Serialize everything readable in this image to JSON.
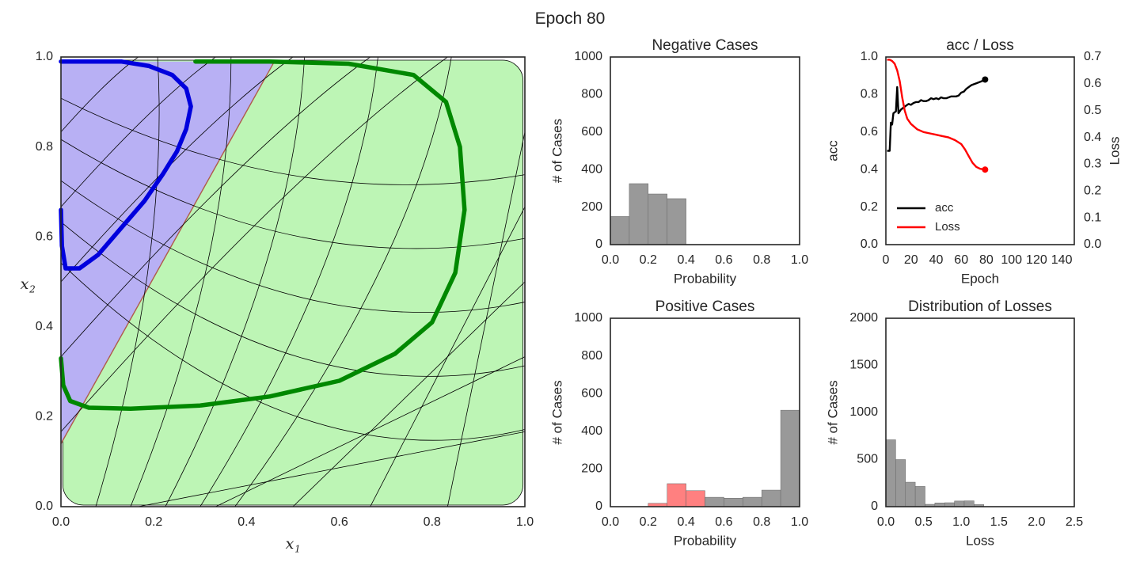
{
  "figure": {
    "suptitle": "Epoch 80"
  },
  "chart_data": [
    {
      "id": "space",
      "type": "scatter",
      "title": "",
      "xlabel": "x",
      "xlabel_sub": "1",
      "ylabel": "x",
      "ylabel_sub": "2",
      "xlim": [
        0,
        1
      ],
      "ylim": [
        0,
        1
      ],
      "xticks": [
        "0.0",
        "0.2",
        "0.4",
        "0.6",
        "0.8",
        "1.0"
      ],
      "yticks": [
        "0.0",
        "0.2",
        "0.4",
        "0.6",
        "0.8",
        "1.0"
      ],
      "regions": {
        "negative_color": "#b8b0f4",
        "positive_color": "#bdf5b5",
        "boundary": [
          [
            0.0,
            0.14
          ],
          [
            0.46,
            0.99
          ]
        ]
      },
      "series": [
        {
          "color": "#0000dd",
          "points": [
            [
              0.0,
              0.66
            ],
            [
              0.002,
              0.58
            ],
            [
              0.01,
              0.53
            ],
            [
              0.04,
              0.53
            ],
            [
              0.08,
              0.56
            ],
            [
              0.13,
              0.62
            ],
            [
              0.18,
              0.68
            ],
            [
              0.22,
              0.74
            ],
            [
              0.25,
              0.79
            ],
            [
              0.27,
              0.84
            ],
            [
              0.28,
              0.89
            ],
            [
              0.27,
              0.93
            ],
            [
              0.24,
              0.96
            ],
            [
              0.19,
              0.98
            ],
            [
              0.13,
              0.99
            ],
            [
              0.07,
              0.99
            ],
            [
              0.02,
              0.99
            ],
            [
              0.0,
              0.99
            ]
          ]
        },
        {
          "color": "#008800",
          "points": [
            [
              0.0,
              0.33
            ],
            [
              0.005,
              0.27
            ],
            [
              0.02,
              0.235
            ],
            [
              0.06,
              0.22
            ],
            [
              0.15,
              0.218
            ],
            [
              0.3,
              0.225
            ],
            [
              0.45,
              0.245
            ],
            [
              0.6,
              0.28
            ],
            [
              0.72,
              0.34
            ],
            [
              0.8,
              0.41
            ],
            [
              0.85,
              0.52
            ],
            [
              0.87,
              0.66
            ],
            [
              0.86,
              0.8
            ],
            [
              0.83,
              0.9
            ],
            [
              0.76,
              0.96
            ],
            [
              0.62,
              0.985
            ],
            [
              0.45,
              0.99
            ],
            [
              0.29,
              0.99
            ]
          ]
        }
      ]
    },
    {
      "id": "neg",
      "type": "bar",
      "title": "Negative Cases",
      "xlabel": "Probability",
      "ylabel": "# of Cases",
      "xlim": [
        0,
        1
      ],
      "ylim": [
        0,
        1000
      ],
      "xticks": [
        "0.0",
        "0.2",
        "0.4",
        "0.6",
        "0.8",
        "1.0"
      ],
      "yticks": [
        "0",
        "200",
        "400",
        "600",
        "800",
        "1000"
      ],
      "bins": [
        [
          0.0,
          0.1,
          150,
          "#999999"
        ],
        [
          0.1,
          0.2,
          325,
          "#999999"
        ],
        [
          0.2,
          0.3,
          270,
          "#999999"
        ],
        [
          0.3,
          0.4,
          245,
          "#999999"
        ]
      ]
    },
    {
      "id": "pos",
      "type": "bar",
      "title": "Positive Cases",
      "xlabel": "Probability",
      "ylabel": "# of Cases",
      "xlim": [
        0,
        1
      ],
      "ylim": [
        0,
        1000
      ],
      "xticks": [
        "0.0",
        "0.2",
        "0.4",
        "0.6",
        "0.8",
        "1.0"
      ],
      "yticks": [
        "0",
        "200",
        "400",
        "600",
        "800",
        "1000"
      ],
      "bins": [
        [
          0.2,
          0.3,
          18,
          "#ff8080"
        ],
        [
          0.3,
          0.4,
          122,
          "#ff8080"
        ],
        [
          0.4,
          0.5,
          85,
          "#ff8080"
        ],
        [
          0.5,
          0.6,
          50,
          "#999999"
        ],
        [
          0.6,
          0.7,
          45,
          "#999999"
        ],
        [
          0.7,
          0.8,
          50,
          "#999999"
        ],
        [
          0.8,
          0.9,
          88,
          "#999999"
        ],
        [
          0.9,
          1.0,
          512,
          "#999999"
        ]
      ]
    },
    {
      "id": "accloss",
      "type": "line",
      "title": "acc / Loss",
      "xlabel": "Epoch",
      "ylabel": "acc",
      "ylabel_right": "Loss",
      "xlim": [
        0,
        150
      ],
      "ylim": [
        0,
        1
      ],
      "ylim_right": [
        0,
        0.7
      ],
      "xticks": [
        "0",
        "20",
        "40",
        "60",
        "80",
        "100",
        "120",
        "140"
      ],
      "yticks": [
        "0.0",
        "0.2",
        "0.4",
        "0.6",
        "0.8",
        "1.0"
      ],
      "yticks_right": [
        "0.0",
        "0.1",
        "0.2",
        "0.3",
        "0.4",
        "0.5",
        "0.6",
        "0.7"
      ],
      "legend": "lower-left",
      "series": [
        {
          "name": "acc",
          "color": "#000000",
          "axis": "left",
          "points": [
            [
              1,
              0.5
            ],
            [
              3,
              0.5
            ],
            [
              4,
              0.65
            ],
            [
              5,
              0.64
            ],
            [
              6,
              0.7
            ],
            [
              8,
              0.71
            ],
            [
              9,
              0.84
            ],
            [
              10,
              0.7
            ],
            [
              12,
              0.72
            ],
            [
              14,
              0.73
            ],
            [
              16,
              0.74
            ],
            [
              18,
              0.75
            ],
            [
              20,
              0.745
            ],
            [
              22,
              0.755
            ],
            [
              24,
              0.76
            ],
            [
              26,
              0.76
            ],
            [
              28,
              0.77
            ],
            [
              30,
              0.765
            ],
            [
              32,
              0.765
            ],
            [
              34,
              0.77
            ],
            [
              36,
              0.78
            ],
            [
              38,
              0.775
            ],
            [
              40,
              0.78
            ],
            [
              42,
              0.775
            ],
            [
              44,
              0.785
            ],
            [
              46,
              0.78
            ],
            [
              48,
              0.78
            ],
            [
              50,
              0.785
            ],
            [
              52,
              0.79
            ],
            [
              54,
              0.79
            ],
            [
              56,
              0.79
            ],
            [
              58,
              0.795
            ],
            [
              60,
              0.81
            ],
            [
              62,
              0.815
            ],
            [
              64,
              0.83
            ],
            [
              66,
              0.84
            ],
            [
              68,
              0.85
            ],
            [
              70,
              0.855
            ],
            [
              72,
              0.86
            ],
            [
              74,
              0.865
            ],
            [
              76,
              0.87
            ],
            [
              79,
              0.88
            ]
          ]
        },
        {
          "name": "Loss",
          "color": "#ff0000",
          "axis": "right",
          "points": [
            [
              1,
              0.69
            ],
            [
              3,
              0.69
            ],
            [
              5,
              0.685
            ],
            [
              7,
              0.675
            ],
            [
              9,
              0.65
            ],
            [
              11,
              0.61
            ],
            [
              13,
              0.55
            ],
            [
              15,
              0.5
            ],
            [
              17,
              0.47
            ],
            [
              20,
              0.45
            ],
            [
              25,
              0.43
            ],
            [
              30,
              0.42
            ],
            [
              35,
              0.415
            ],
            [
              40,
              0.41
            ],
            [
              45,
              0.405
            ],
            [
              50,
              0.4
            ],
            [
              55,
              0.39
            ],
            [
              60,
              0.375
            ],
            [
              63,
              0.355
            ],
            [
              66,
              0.33
            ],
            [
              69,
              0.305
            ],
            [
              72,
              0.29
            ],
            [
              75,
              0.283
            ],
            [
              79,
              0.28
            ]
          ]
        }
      ]
    },
    {
      "id": "lossdist",
      "type": "bar",
      "title": "Distribution of Losses",
      "xlabel": "Loss",
      "ylabel": "# of Cases",
      "xlim": [
        0,
        2.5
      ],
      "ylim": [
        0,
        2000
      ],
      "xticks": [
        "0.0",
        "0.5",
        "1.0",
        "1.5",
        "2.0",
        "2.5"
      ],
      "yticks": [
        "0",
        "500",
        "1000",
        "1500",
        "2000"
      ],
      "bins": [
        [
          0.0,
          0.13,
          710,
          "#999999"
        ],
        [
          0.13,
          0.26,
          500,
          "#999999"
        ],
        [
          0.26,
          0.39,
          260,
          "#999999"
        ],
        [
          0.39,
          0.52,
          215,
          "#999999"
        ],
        [
          0.52,
          0.65,
          25,
          "#999999"
        ],
        [
          0.65,
          0.78,
          40,
          "#999999"
        ],
        [
          0.78,
          0.91,
          42,
          "#999999"
        ],
        [
          0.91,
          1.04,
          60,
          "#999999"
        ],
        [
          1.04,
          1.17,
          62,
          "#999999"
        ],
        [
          1.17,
          1.3,
          22,
          "#999999"
        ]
      ]
    }
  ]
}
